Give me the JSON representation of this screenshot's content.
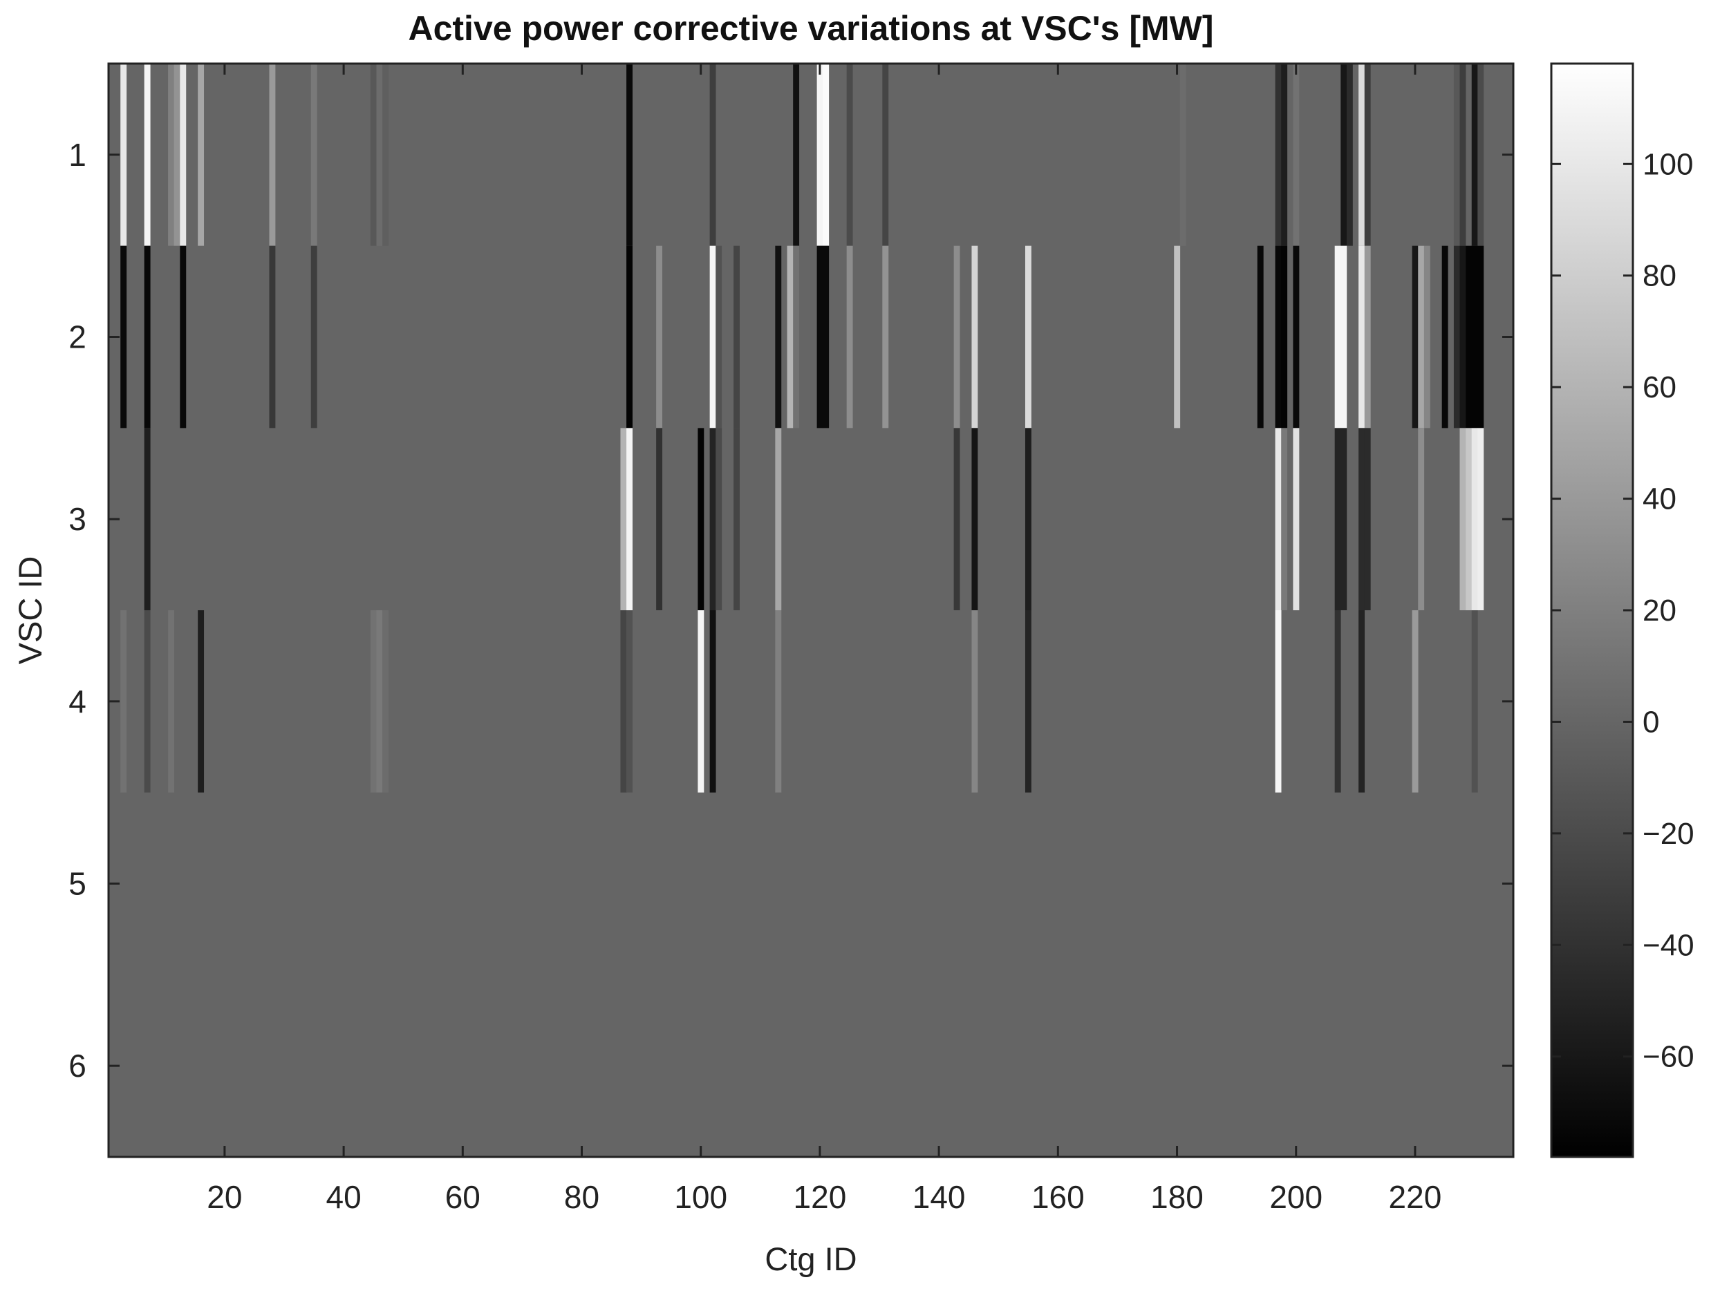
{
  "chart_data": {
    "type": "heatmap",
    "title": "Active power corrective variations at VSC's [MW]",
    "xlabel": "Ctg ID",
    "ylabel": "VSC ID",
    "xlim": [
      0.5,
      236.5
    ],
    "ylim": [
      0.5,
      6.5
    ],
    "x_ticks": [
      20,
      40,
      60,
      80,
      100,
      120,
      140,
      160,
      180,
      200,
      220
    ],
    "y_ticks": [
      1,
      2,
      3,
      4,
      5,
      6
    ],
    "colorbar": {
      "colormap": "gray",
      "range": [
        -78,
        118
      ],
      "ticks": [
        -60,
        -40,
        -20,
        0,
        20,
        40,
        60,
        80,
        100
      ],
      "tick_labels": [
        "−60",
        "−40",
        "−20",
        "0",
        "20",
        "40",
        "60",
        "80",
        "100"
      ]
    },
    "background_value": 0,
    "cells": [
      {
        "vsc": 1,
        "ctg": 3,
        "value": 100
      },
      {
        "vsc": 1,
        "ctg": 7,
        "value": 110
      },
      {
        "vsc": 1,
        "ctg": 11,
        "value": 20
      },
      {
        "vsc": 1,
        "ctg": 12,
        "value": 35
      },
      {
        "vsc": 1,
        "ctg": 13,
        "value": 100
      },
      {
        "vsc": 1,
        "ctg": 16,
        "value": 50
      },
      {
        "vsc": 1,
        "ctg": 28,
        "value": 40
      },
      {
        "vsc": 1,
        "ctg": 35,
        "value": 15
      },
      {
        "vsc": 1,
        "ctg": 45,
        "value": -10
      },
      {
        "vsc": 1,
        "ctg": 46,
        "value": 5
      },
      {
        "vsc": 1,
        "ctg": 47,
        "value": -5
      },
      {
        "vsc": 1,
        "ctg": 88,
        "value": -70
      },
      {
        "vsc": 1,
        "ctg": 102,
        "value": -30
      },
      {
        "vsc": 1,
        "ctg": 116,
        "value": -65
      },
      {
        "vsc": 1,
        "ctg": 120,
        "value": 110
      },
      {
        "vsc": 1,
        "ctg": 121,
        "value": 115
      },
      {
        "vsc": 1,
        "ctg": 125,
        "value": -20
      },
      {
        "vsc": 1,
        "ctg": 131,
        "value": -25
      },
      {
        "vsc": 1,
        "ctg": 181,
        "value": 5
      },
      {
        "vsc": 1,
        "ctg": 197,
        "value": -40
      },
      {
        "vsc": 1,
        "ctg": 198,
        "value": -55
      },
      {
        "vsc": 1,
        "ctg": 200,
        "value": 10
      },
      {
        "vsc": 1,
        "ctg": 208,
        "value": -60
      },
      {
        "vsc": 1,
        "ctg": 209,
        "value": -45
      },
      {
        "vsc": 1,
        "ctg": 211,
        "value": 90
      },
      {
        "vsc": 1,
        "ctg": 212,
        "value": -30
      },
      {
        "vsc": 1,
        "ctg": 227,
        "value": -10
      },
      {
        "vsc": 1,
        "ctg": 228,
        "value": -30
      },
      {
        "vsc": 1,
        "ctg": 230,
        "value": -60
      },
      {
        "vsc": 1,
        "ctg": 231,
        "value": -20
      },
      {
        "vsc": 2,
        "ctg": 3,
        "value": -70
      },
      {
        "vsc": 2,
        "ctg": 7,
        "value": -72
      },
      {
        "vsc": 2,
        "ctg": 13,
        "value": -72
      },
      {
        "vsc": 2,
        "ctg": 28,
        "value": -35
      },
      {
        "vsc": 2,
        "ctg": 35,
        "value": -30
      },
      {
        "vsc": 2,
        "ctg": 88,
        "value": -75
      },
      {
        "vsc": 2,
        "ctg": 93,
        "value": 30
      },
      {
        "vsc": 2,
        "ctg": 102,
        "value": 110
      },
      {
        "vsc": 2,
        "ctg": 103,
        "value": -15
      },
      {
        "vsc": 2,
        "ctg": 106,
        "value": -25
      },
      {
        "vsc": 2,
        "ctg": 113,
        "value": -65
      },
      {
        "vsc": 2,
        "ctg": 115,
        "value": 60
      },
      {
        "vsc": 2,
        "ctg": 116,
        "value": 10
      },
      {
        "vsc": 2,
        "ctg": 120,
        "value": -70
      },
      {
        "vsc": 2,
        "ctg": 121,
        "value": -70
      },
      {
        "vsc": 2,
        "ctg": 125,
        "value": 30
      },
      {
        "vsc": 2,
        "ctg": 131,
        "value": 35
      },
      {
        "vsc": 2,
        "ctg": 143,
        "value": 30
      },
      {
        "vsc": 2,
        "ctg": 146,
        "value": 85
      },
      {
        "vsc": 2,
        "ctg": 155,
        "value": 90
      },
      {
        "vsc": 2,
        "ctg": 180,
        "value": 70
      },
      {
        "vsc": 2,
        "ctg": 194,
        "value": -72
      },
      {
        "vsc": 2,
        "ctg": 197,
        "value": -72
      },
      {
        "vsc": 2,
        "ctg": 198,
        "value": -75
      },
      {
        "vsc": 2,
        "ctg": 200,
        "value": -70
      },
      {
        "vsc": 2,
        "ctg": 207,
        "value": 110
      },
      {
        "vsc": 2,
        "ctg": 208,
        "value": 110
      },
      {
        "vsc": 2,
        "ctg": 211,
        "value": 100
      },
      {
        "vsc": 2,
        "ctg": 212,
        "value": 40
      },
      {
        "vsc": 2,
        "ctg": 220,
        "value": -60
      },
      {
        "vsc": 2,
        "ctg": 221,
        "value": 50
      },
      {
        "vsc": 2,
        "ctg": 222,
        "value": 25
      },
      {
        "vsc": 2,
        "ctg": 225,
        "value": -72
      },
      {
        "vsc": 2,
        "ctg": 227,
        "value": -45
      },
      {
        "vsc": 2,
        "ctg": 228,
        "value": -60
      },
      {
        "vsc": 2,
        "ctg": 229,
        "value": -75
      },
      {
        "vsc": 2,
        "ctg": 230,
        "value": -75
      },
      {
        "vsc": 2,
        "ctg": 231,
        "value": -75
      },
      {
        "vsc": 3,
        "ctg": 7,
        "value": -55
      },
      {
        "vsc": 3,
        "ctg": 87,
        "value": 60
      },
      {
        "vsc": 3,
        "ctg": 88,
        "value": 110
      },
      {
        "vsc": 3,
        "ctg": 93,
        "value": -40
      },
      {
        "vsc": 3,
        "ctg": 100,
        "value": -75
      },
      {
        "vsc": 3,
        "ctg": 102,
        "value": -50
      },
      {
        "vsc": 3,
        "ctg": 103,
        "value": -20
      },
      {
        "vsc": 3,
        "ctg": 106,
        "value": -25
      },
      {
        "vsc": 3,
        "ctg": 113,
        "value": 50
      },
      {
        "vsc": 3,
        "ctg": 143,
        "value": -35
      },
      {
        "vsc": 3,
        "ctg": 146,
        "value": -62
      },
      {
        "vsc": 3,
        "ctg": 155,
        "value": -55
      },
      {
        "vsc": 3,
        "ctg": 197,
        "value": 100
      },
      {
        "vsc": 3,
        "ctg": 198,
        "value": 15
      },
      {
        "vsc": 3,
        "ctg": 200,
        "value": 95
      },
      {
        "vsc": 3,
        "ctg": 207,
        "value": -50
      },
      {
        "vsc": 3,
        "ctg": 208,
        "value": -50
      },
      {
        "vsc": 3,
        "ctg": 211,
        "value": -45
      },
      {
        "vsc": 3,
        "ctg": 212,
        "value": -45
      },
      {
        "vsc": 3,
        "ctg": 221,
        "value": 30
      },
      {
        "vsc": 3,
        "ctg": 228,
        "value": 60
      },
      {
        "vsc": 3,
        "ctg": 229,
        "value": 75
      },
      {
        "vsc": 3,
        "ctg": 230,
        "value": 100
      },
      {
        "vsc": 3,
        "ctg": 231,
        "value": 105
      },
      {
        "vsc": 4,
        "ctg": 3,
        "value": 10
      },
      {
        "vsc": 4,
        "ctg": 7,
        "value": -20
      },
      {
        "vsc": 4,
        "ctg": 11,
        "value": 10
      },
      {
        "vsc": 4,
        "ctg": 16,
        "value": -55
      },
      {
        "vsc": 4,
        "ctg": 45,
        "value": 10
      },
      {
        "vsc": 4,
        "ctg": 46,
        "value": 15
      },
      {
        "vsc": 4,
        "ctg": 47,
        "value": 5
      },
      {
        "vsc": 4,
        "ctg": 87,
        "value": -25
      },
      {
        "vsc": 4,
        "ctg": 88,
        "value": -15
      },
      {
        "vsc": 4,
        "ctg": 100,
        "value": 110
      },
      {
        "vsc": 4,
        "ctg": 102,
        "value": -65
      },
      {
        "vsc": 4,
        "ctg": 113,
        "value": 20
      },
      {
        "vsc": 4,
        "ctg": 146,
        "value": 25
      },
      {
        "vsc": 4,
        "ctg": 155,
        "value": -50
      },
      {
        "vsc": 4,
        "ctg": 197,
        "value": 110
      },
      {
        "vsc": 4,
        "ctg": 207,
        "value": -40
      },
      {
        "vsc": 4,
        "ctg": 211,
        "value": -50
      },
      {
        "vsc": 4,
        "ctg": 220,
        "value": 40
      },
      {
        "vsc": 4,
        "ctg": 230,
        "value": -15
      }
    ]
  }
}
